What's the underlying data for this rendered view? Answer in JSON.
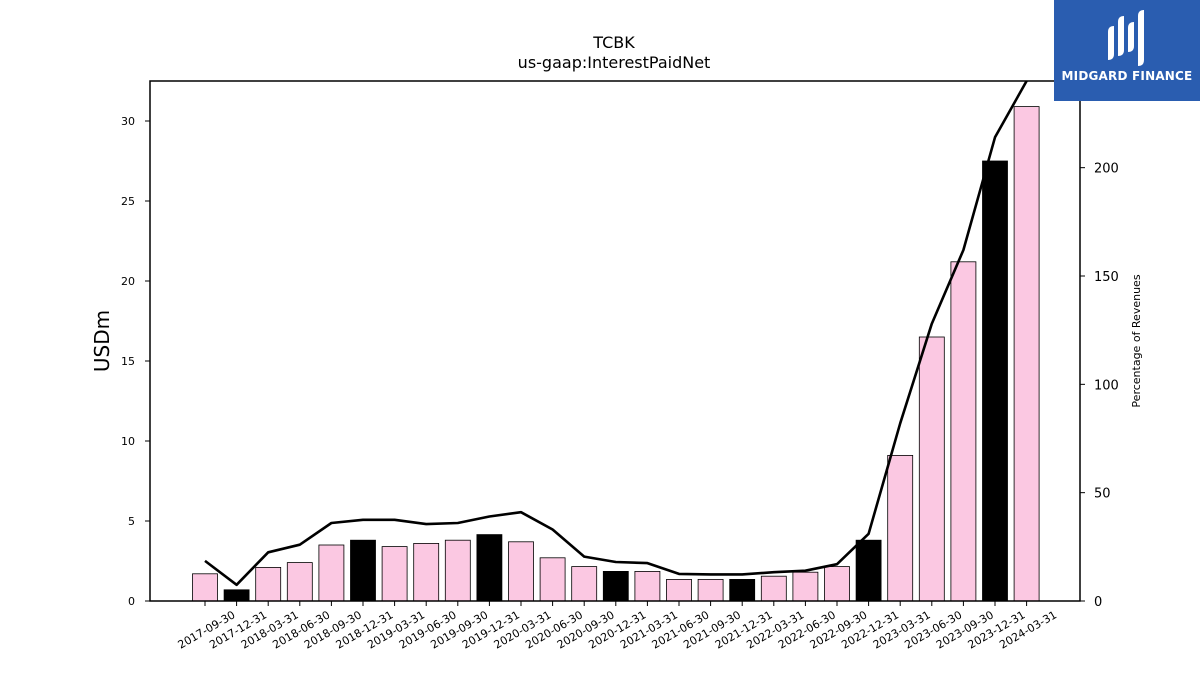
{
  "chart_data": {
    "type": "bar",
    "title": "TCBK",
    "subtitle": "us-gaap:InterestPaidNet",
    "ylabel": "USDm",
    "ylabel_right": "Percentage of Revenues",
    "ylim": [
      0,
      32.5
    ],
    "ylim_right": [
      0,
      240
    ],
    "yticks": [
      0,
      5,
      10,
      15,
      20,
      25,
      30
    ],
    "yticks_right": [
      0,
      50,
      100,
      150,
      200
    ],
    "colors": {
      "quarter": "#fbc8e2",
      "year_end": "#000000",
      "line": "#000000",
      "edge": "#000000"
    },
    "categories": [
      "2017-09-30",
      "2017-12-31",
      "2018-03-31",
      "2018-06-30",
      "2018-09-30",
      "2018-12-31",
      "2019-03-31",
      "2019-06-30",
      "2019-09-30",
      "2019-12-31",
      "2020-03-31",
      "2020-06-30",
      "2020-09-30",
      "2020-12-31",
      "2021-03-31",
      "2021-06-30",
      "2021-09-30",
      "2021-12-31",
      "2022-03-31",
      "2022-06-30",
      "2022-09-30",
      "2022-12-31",
      "2023-03-31",
      "2023-06-30",
      "2023-09-30",
      "2023-12-31",
      "2024-03-31"
    ],
    "series": [
      {
        "type": "bar",
        "values": [
          1.7,
          0.7,
          2.1,
          2.4,
          3.5,
          3.8,
          3.4,
          3.6,
          3.8,
          4.15,
          3.7,
          2.7,
          2.15,
          1.85,
          1.85,
          1.35,
          1.35,
          1.35,
          1.55,
          1.8,
          2.15,
          3.8,
          9.1,
          16.5,
          21.2,
          27.5,
          30.9
        ],
        "highlight_year_end": true
      },
      {
        "type": "line",
        "axis": "right",
        "values": [
          18.5,
          7.5,
          22.5,
          26,
          36,
          37.5,
          37.5,
          35.5,
          36,
          39,
          41,
          33,
          20.5,
          18,
          17.5,
          12.5,
          12.3,
          12.3,
          13.3,
          14,
          17,
          31,
          82,
          128,
          162,
          214,
          241
        ]
      }
    ]
  },
  "branding": {
    "logo_text": "MIDGARD FINANCE"
  }
}
